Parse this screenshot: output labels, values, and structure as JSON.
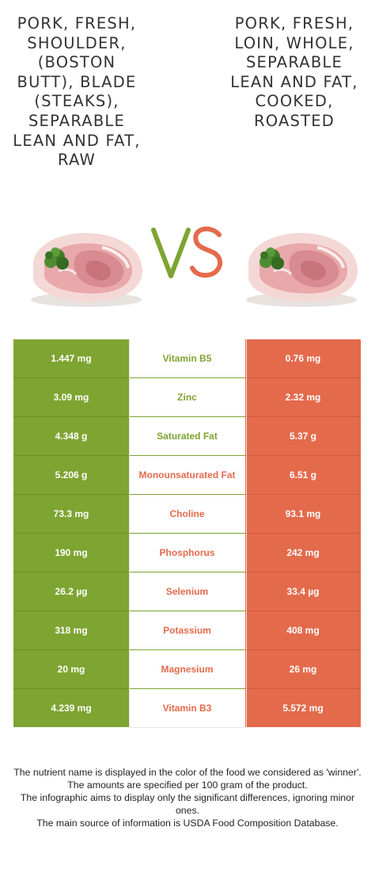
{
  "food_left": {
    "name": "Pork, fresh, shoulder, (Boston butt), blade (steaks), separable lean and fat, raw",
    "color": "#7ea431"
  },
  "food_right": {
    "name": "Pork, fresh, loin, whole, separable lean and fat, cooked, roasted",
    "color": "#e46a4c"
  },
  "vs": {
    "v": "V",
    "s": "S"
  },
  "nutrients": [
    {
      "name": "Vitamin B5",
      "left": "1.447 mg",
      "right": "0.76 mg",
      "winner": "left"
    },
    {
      "name": "Zinc",
      "left": "3.09 mg",
      "right": "2.32 mg",
      "winner": "left"
    },
    {
      "name": "Saturated Fat",
      "left": "4.348 g",
      "right": "5.37 g",
      "winner": "left"
    },
    {
      "name": "Monounsaturated Fat",
      "left": "5.206 g",
      "right": "6.51 g",
      "winner": "right"
    },
    {
      "name": "Choline",
      "left": "73.3 mg",
      "right": "93.1 mg",
      "winner": "right"
    },
    {
      "name": "Phosphorus",
      "left": "190 mg",
      "right": "242 mg",
      "winner": "right"
    },
    {
      "name": "Selenium",
      "left": "26.2 µg",
      "right": "33.4 µg",
      "winner": "right"
    },
    {
      "name": "Potassium",
      "left": "318 mg",
      "right": "408 mg",
      "winner": "right"
    },
    {
      "name": "Magnesium",
      "left": "20 mg",
      "right": "26 mg",
      "winner": "right"
    },
    {
      "name": "Vitamin B3",
      "left": "4.239 mg",
      "right": "5.572 mg",
      "winner": "right"
    }
  ],
  "footnotes": [
    "The nutrient name is displayed in the color of the food we considered as 'winner'.",
    "The amounts are specified per 100 gram of the product.",
    "The infographic aims to display only the significant differences, ignoring minor ones.",
    "The main source of information is USDA Food Composition Database."
  ]
}
